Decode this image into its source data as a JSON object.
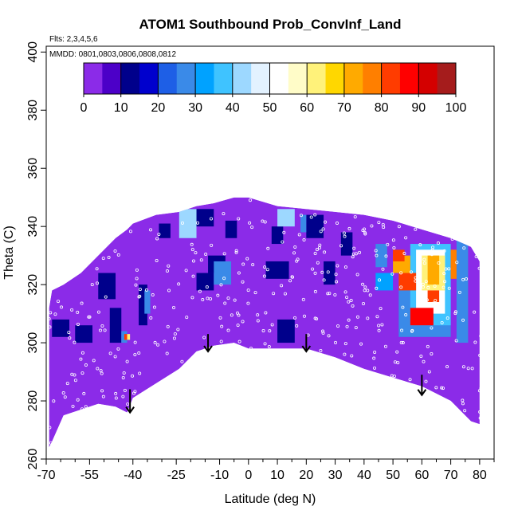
{
  "chart_data": {
    "type": "heatmap",
    "title": "ATOM1 Southbound Prob_ConvInf_Land",
    "annotations": [
      "Flts: 2,3,4,5,6",
      "MMDD: 0801,0803,0806,0808,0812"
    ],
    "xlabel": "Latitude (deg N)",
    "ylabel": "Theta (C)",
    "xlim": [
      -70,
      85
    ],
    "ylim": [
      260,
      402
    ],
    "x_ticks": [
      -70,
      -55,
      -40,
      -25,
      -10,
      0,
      10,
      20,
      30,
      40,
      50,
      60,
      70,
      80
    ],
    "x_minor_ticks": [
      -65,
      -60,
      -50,
      -45,
      -35,
      -30,
      -20,
      -15,
      -5,
      5,
      15,
      25,
      35,
      45,
      55,
      65,
      75,
      85
    ],
    "y_ticks": [
      260,
      280,
      300,
      320,
      340,
      360,
      380,
      400
    ],
    "grid": false,
    "colorbar": {
      "placement": "top",
      "ticks": [
        0,
        10,
        20,
        30,
        40,
        50,
        60,
        70,
        80,
        90,
        100
      ],
      "colors": [
        "#8b2be8",
        "#4c00c8",
        "#00008b",
        "#0000cd",
        "#1e5fe6",
        "#3a8ae8",
        "#00a2ff",
        "#3fc3ff",
        "#9dd8ff",
        "#e3f2ff",
        "#ffffff",
        "#fffcc8",
        "#fff27a",
        "#ffd700",
        "#ffaa00",
        "#ff7f00",
        "#ff3c00",
        "#ff0000",
        "#d40000",
        "#a51c1c"
      ]
    },
    "background_value": 3,
    "domain_boundary": {
      "lat": [
        -69,
        -68,
        -64,
        -58,
        -52,
        -46,
        -42,
        -40,
        -32,
        -24,
        -18,
        -12,
        -5,
        0,
        10,
        20,
        30,
        40,
        50,
        60,
        70,
        77,
        80
      ],
      "theta_top": [
        312,
        318,
        320,
        324,
        330,
        336,
        339,
        341,
        344,
        345,
        347,
        348,
        350,
        350,
        347,
        346,
        345,
        344,
        342,
        339,
        336,
        333,
        328
      ],
      "theta_bottom": [
        264,
        266,
        275,
        277,
        279,
        278,
        276,
        281,
        286,
        291,
        297,
        299,
        300,
        298,
        298,
        298,
        295,
        291,
        288,
        285,
        280,
        273,
        272
      ]
    },
    "cells": [
      {
        "lat": [
          -68,
          -62
        ],
        "theta": [
          302,
          308
        ],
        "value": 10
      },
      {
        "lat": [
          -60,
          -54
        ],
        "theta": [
          300,
          306
        ],
        "value": 12
      },
      {
        "lat": [
          -52,
          -46
        ],
        "theta": [
          315,
          324
        ],
        "value": 10
      },
      {
        "lat": [
          -48,
          -44
        ],
        "theta": [
          300,
          312
        ],
        "value": 12
      },
      {
        "lat": [
          -44,
          -42
        ],
        "theta": [
          300,
          304
        ],
        "value": 25
      },
      {
        "lat": [
          -43,
          -42
        ],
        "theta": [
          301,
          303
        ],
        "value": 80
      },
      {
        "lat": [
          -42,
          -41
        ],
        "theta": [
          301,
          303
        ],
        "value": 62
      },
      {
        "lat": [
          -38,
          -35
        ],
        "theta": [
          306,
          320
        ],
        "value": 12
      },
      {
        "lat": [
          -36,
          -34
        ],
        "theta": [
          310,
          318
        ],
        "value": 25
      },
      {
        "lat": [
          -31,
          -27
        ],
        "theta": [
          336,
          341
        ],
        "value": 12
      },
      {
        "lat": [
          -18,
          -12
        ],
        "theta": [
          318,
          324
        ],
        "value": 10
      },
      {
        "lat": [
          -14,
          -8
        ],
        "theta": [
          324,
          330
        ],
        "value": 12
      },
      {
        "lat": [
          -12,
          -6
        ],
        "theta": [
          320,
          328
        ],
        "value": 25
      },
      {
        "lat": [
          -20,
          -12
        ],
        "theta": [
          340,
          346
        ],
        "value": 10
      },
      {
        "lat": [
          -24,
          -18
        ],
        "theta": [
          336,
          346
        ],
        "value": 40
      },
      {
        "lat": [
          -8,
          -4
        ],
        "theta": [
          336,
          342
        ],
        "value": 12
      },
      {
        "lat": [
          6,
          14
        ],
        "theta": [
          322,
          328
        ],
        "value": 12
      },
      {
        "lat": [
          10,
          16
        ],
        "theta": [
          300,
          308
        ],
        "value": 12
      },
      {
        "lat": [
          8,
          12
        ],
        "theta": [
          334,
          340
        ],
        "value": 10
      },
      {
        "lat": [
          10,
          16
        ],
        "theta": [
          340,
          346
        ],
        "value": 40
      },
      {
        "lat": [
          20,
          26
        ],
        "theta": [
          336,
          344
        ],
        "value": 12
      },
      {
        "lat": [
          18,
          20
        ],
        "theta": [
          338,
          344
        ],
        "value": 25
      },
      {
        "lat": [
          26,
          30
        ],
        "theta": [
          320,
          328
        ],
        "value": 12
      },
      {
        "lat": [
          32,
          36
        ],
        "theta": [
          330,
          338
        ],
        "value": 12
      },
      {
        "lat": [
          52,
          70
        ],
        "theta": [
          302,
          330
        ],
        "value": 25
      },
      {
        "lat": [
          56,
          70
        ],
        "theta": [
          306,
          334
        ],
        "value": 35
      },
      {
        "lat": [
          58,
          68
        ],
        "theta": [
          310,
          332
        ],
        "value": 50
      },
      {
        "lat": [
          60,
          68
        ],
        "theta": [
          318,
          330
        ],
        "value": 62
      },
      {
        "lat": [
          62,
          66
        ],
        "theta": [
          320,
          330
        ],
        "value": 72
      },
      {
        "lat": [
          56,
          64
        ],
        "theta": [
          306,
          312
        ],
        "value": 86
      },
      {
        "lat": [
          62,
          66
        ],
        "theta": [
          314,
          318
        ],
        "value": 80
      },
      {
        "lat": [
          52,
          58
        ],
        "theta": [
          318,
          324
        ],
        "value": 82
      },
      {
        "lat": [
          50,
          56
        ],
        "theta": [
          324,
          330
        ],
        "value": 72
      },
      {
        "lat": [
          50,
          54
        ],
        "theta": [
          328,
          332
        ],
        "value": 84
      },
      {
        "lat": [
          70,
          74
        ],
        "theta": [
          322,
          332
        ],
        "value": 78
      },
      {
        "lat": [
          72,
          76
        ],
        "theta": [
          300,
          336
        ],
        "value": 25
      },
      {
        "lat": [
          44,
          50
        ],
        "theta": [
          318,
          324
        ],
        "value": 30
      },
      {
        "lat": [
          44,
          48
        ],
        "theta": [
          326,
          334
        ],
        "value": 25
      }
    ],
    "arrows": [
      {
        "lat": -41,
        "theta_from": 284,
        "theta_to": 276
      },
      {
        "lat": -14,
        "theta_from": 303,
        "theta_to": 297
      },
      {
        "lat": 20,
        "theta_from": 303,
        "theta_to": 297
      },
      {
        "lat": 60,
        "theta_from": 289,
        "theta_to": 282
      }
    ],
    "observations_marker": "white open circles"
  }
}
